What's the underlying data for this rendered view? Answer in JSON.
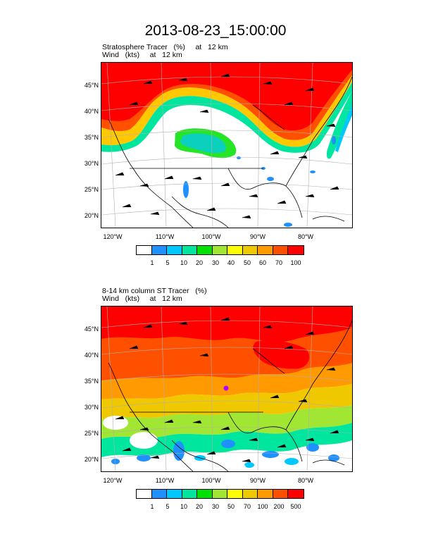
{
  "title": "2013-08-23_15:00:00",
  "panels": [
    {
      "subtitle_line1": "Stratosphere Tracer   (%)     at   12 km",
      "subtitle_line2": "Wind   (kts)     at   12 km",
      "colorbar_labels": [
        "1",
        "5",
        "10",
        "20",
        "30",
        "40",
        "50",
        "60",
        "70",
        "100"
      ]
    },
    {
      "subtitle_line1": "8-14 km column ST Tracer   (%)",
      "subtitle_line2": "Wind   (kts)     at   12 km",
      "colorbar_labels": [
        "1",
        "5",
        "10",
        "20",
        "30",
        "50",
        "70",
        "100",
        "200",
        "500"
      ]
    }
  ],
  "lat_labels": [
    "45°N",
    "40°N",
    "35°N",
    "30°N",
    "25°N",
    "20°N"
  ],
  "lon_labels": [
    "120°W",
    "110°W",
    "100°W",
    "90°W",
    "80°W"
  ],
  "colors": [
    "#ffffff",
    "#1e90ff",
    "#00c8ff",
    "#00e69e",
    "#00e100",
    "#a0e632",
    "#ffff00",
    "#f0c800",
    "#ff9b00",
    "#ff5000",
    "#ff0000"
  ]
}
